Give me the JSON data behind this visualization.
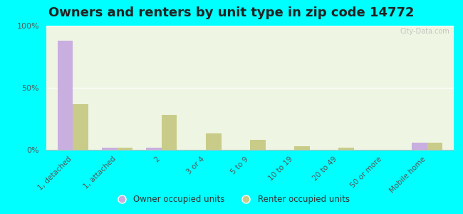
{
  "title": "Owners and renters by unit type in zip code 14772",
  "categories": [
    "1, detached",
    "1, attached",
    "2",
    "3 or 4",
    "5 to 9",
    "10 to 19",
    "20 to 49",
    "50 or more",
    "Mobile home"
  ],
  "owner_values": [
    88,
    1.5,
    1.5,
    0,
    0,
    0,
    0,
    0,
    6
  ],
  "renter_values": [
    37,
    2,
    28,
    13,
    8,
    3,
    1.5,
    0,
    6
  ],
  "owner_color": "#c9aee0",
  "renter_color": "#c8cc88",
  "background_color": "#00ffff",
  "plot_bg_color": "#eef5e2",
  "ylabel_ticks": [
    "0%",
    "50%",
    "100%"
  ],
  "ytick_vals": [
    0,
    50,
    100
  ],
  "ylim": [
    0,
    100
  ],
  "watermark": "City-Data.com",
  "legend_owner": "Owner occupied units",
  "legend_renter": "Renter occupied units",
  "title_fontsize": 13,
  "bar_width": 0.35
}
